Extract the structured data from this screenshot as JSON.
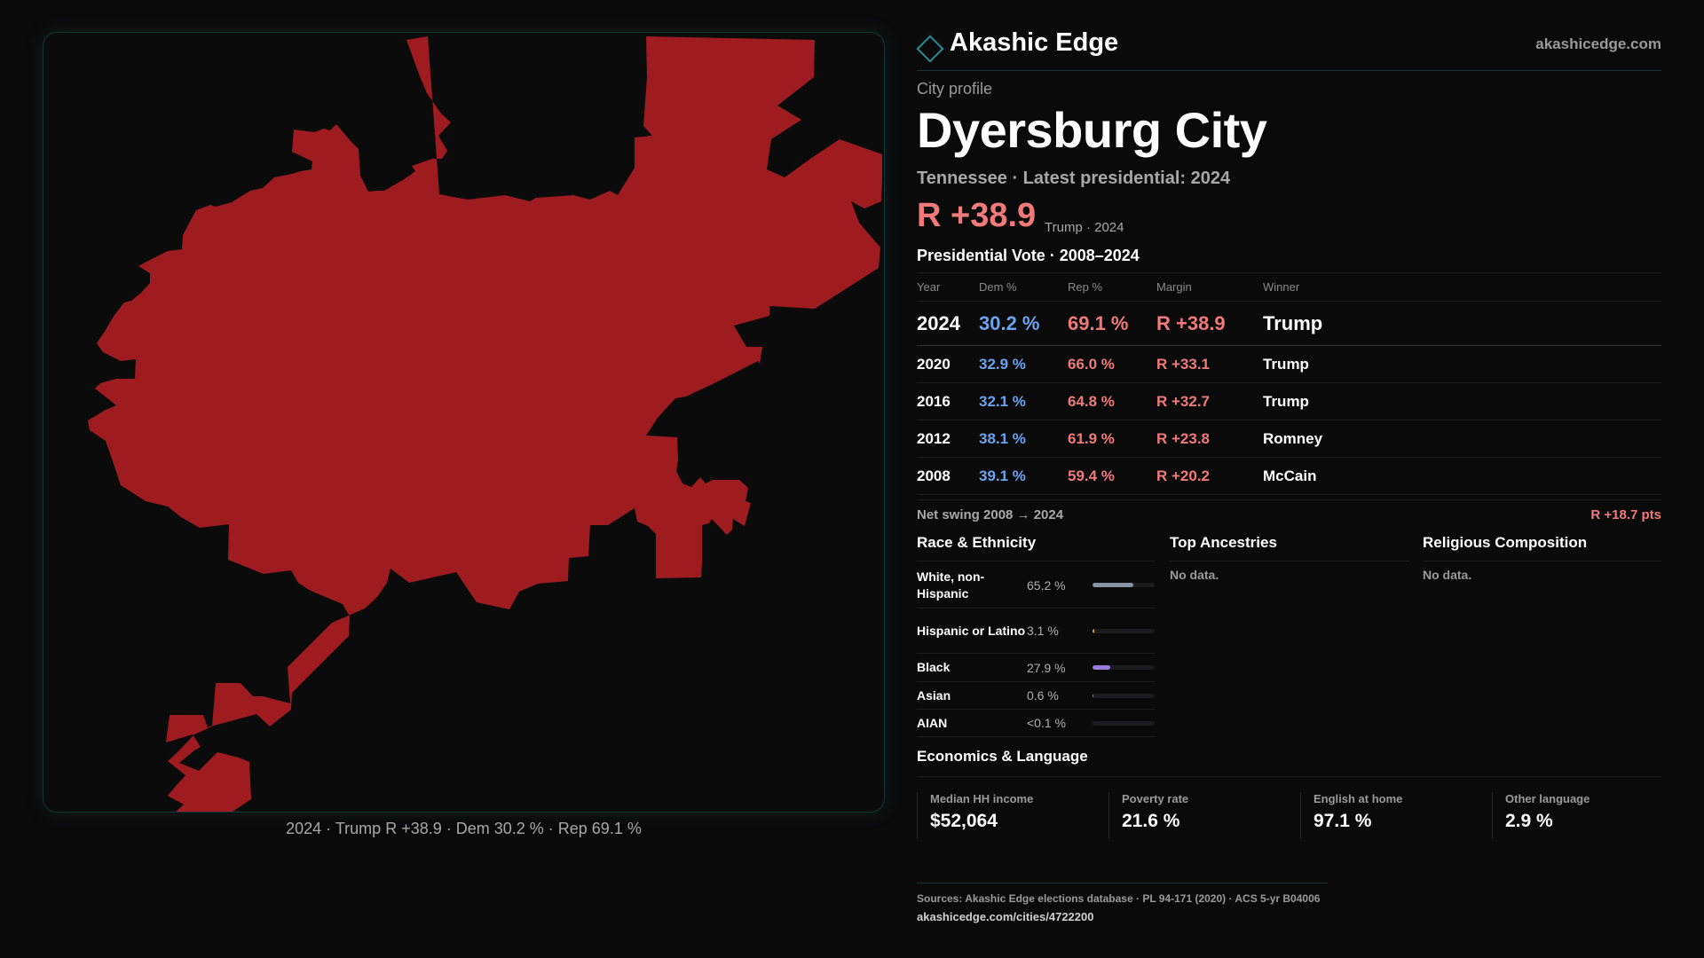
{
  "map": {
    "fill_color": "#9e1c1f",
    "caption": "2024 · Trump R +38.9 · Dem 30.2 % · Rep 69.1 %"
  },
  "brand": {
    "name": "Akashic Edge",
    "url": "akashicedge.com",
    "icon": "diamond-logo-icon"
  },
  "profile": {
    "eyebrow": "City profile",
    "title": "Dyersburg City",
    "subtitle": "Tennessee · Latest presidential: 2024",
    "margin": "R +38.9",
    "margin_note": "Trump · 2024"
  },
  "votes": {
    "heading": "Presidential Vote · 2008–2024",
    "columns": [
      "Year",
      "Dem %",
      "Rep %",
      "Margin",
      "Winner"
    ],
    "rows": [
      {
        "year": "2024",
        "dem": "30.2 %",
        "rep": "69.1 %",
        "margin": "R +38.9",
        "winner": "Trump"
      },
      {
        "year": "2020",
        "dem": "32.9 %",
        "rep": "66.0 %",
        "margin": "R +33.1",
        "winner": "Trump"
      },
      {
        "year": "2016",
        "dem": "32.1 %",
        "rep": "64.8 %",
        "margin": "R +32.7",
        "winner": "Trump"
      },
      {
        "year": "2012",
        "dem": "38.1 %",
        "rep": "61.9 %",
        "margin": "R +23.8",
        "winner": "Romney"
      },
      {
        "year": "2008",
        "dem": "39.1 %",
        "rep": "59.4 %",
        "margin": "R +20.2",
        "winner": "McCain"
      }
    ],
    "swing_label": "Net swing 2008 → 2024",
    "swing_value": "R +18.7 pts"
  },
  "race": {
    "heading": "Race & Ethnicity",
    "rows": [
      {
        "name": "White, non-Hispanic",
        "pct": "65.2 %",
        "share": 0.652,
        "color": "#8a93a6"
      },
      {
        "name": "Hispanic or Latino",
        "pct": "3.1 %",
        "share": 0.031,
        "color": "#e0a050"
      },
      {
        "name": "Black",
        "pct": "27.9 %",
        "share": 0.279,
        "color": "#9a7ae0"
      },
      {
        "name": "Asian",
        "pct": "0.6 %",
        "share": 0.006,
        "color": "#5aa0c0"
      },
      {
        "name": "AIAN",
        "pct": "<0.1 %",
        "share": 0.0,
        "color": "#8a8a8a"
      }
    ]
  },
  "ancestries": {
    "heading": "Top Ancestries",
    "empty": "No data."
  },
  "religion": {
    "heading": "Religious Composition",
    "empty": "No data."
  },
  "economics": {
    "heading": "Economics & Language",
    "cells": [
      {
        "label": "Median HH income",
        "value": "$52,064"
      },
      {
        "label": "Poverty rate",
        "value": "21.6 %"
      },
      {
        "label": "English at home",
        "value": "97.1 %"
      },
      {
        "label": "Other language",
        "value": "2.9 %"
      }
    ]
  },
  "sources": {
    "text": "Sources: Akashic Edge elections database · PL 94-171 (2020) · ACS 5-yr B04006",
    "url": "akashicedge.com/cities/4722200"
  }
}
